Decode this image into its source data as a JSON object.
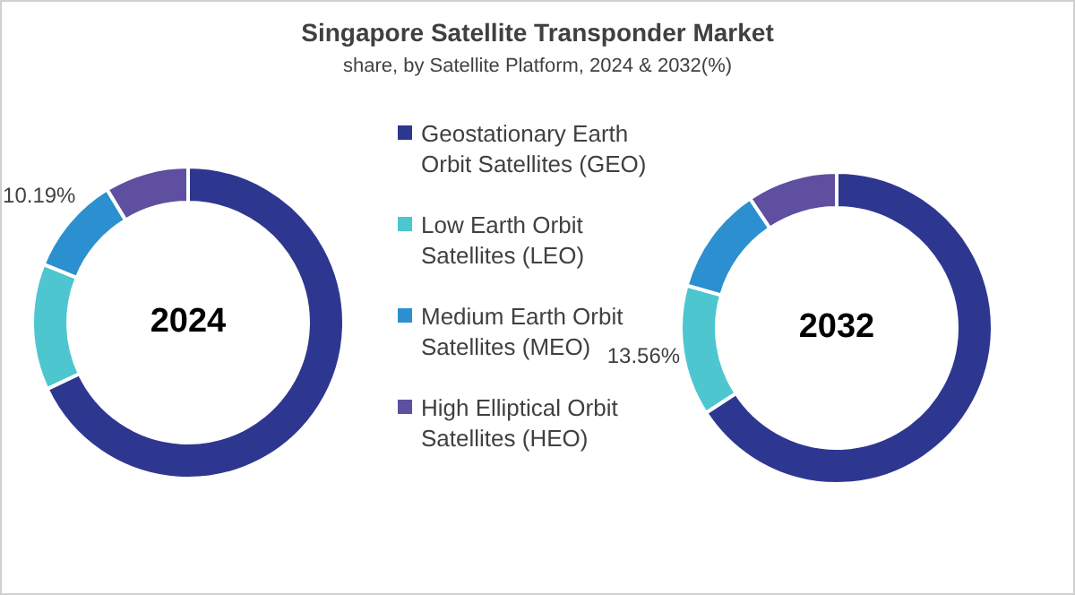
{
  "chart_data": [
    {
      "type": "donut",
      "title": "Singapore Satellite Transponder  Market",
      "subtitle": "share, by Satellite Platform, 2024 & 2032(%)",
      "annotations": [
        "2024"
      ],
      "legend": "right",
      "categories": [
        "Geostationary Earth Orbit Satellites (GEO)",
        "Low Earth Orbit Satellites (LEO)",
        "Medium Earth Orbit Satellites (MEO)",
        "High Elliptical Orbit Satellites (HEO)"
      ],
      "values": [
        68.0,
        13.1,
        10.19,
        8.71
      ],
      "colors": [
        "#2e3790",
        "#4dc6d0",
        "#2b8fd0",
        "#5e4fa0"
      ],
      "value_labels": [
        null,
        null,
        "10.19%",
        null
      ]
    },
    {
      "type": "donut",
      "annotations": [
        "2032"
      ],
      "categories": [
        null,
        null,
        null,
        null
      ],
      "values": [
        65.84,
        13.56,
        11.2,
        9.4
      ],
      "colors": [
        "#2e3790",
        "#4dc6d0",
        "#2b8fd0",
        "#5e4fa0"
      ],
      "value_labels": [
        null,
        "13.56%",
        null,
        null
      ]
    }
  ]
}
